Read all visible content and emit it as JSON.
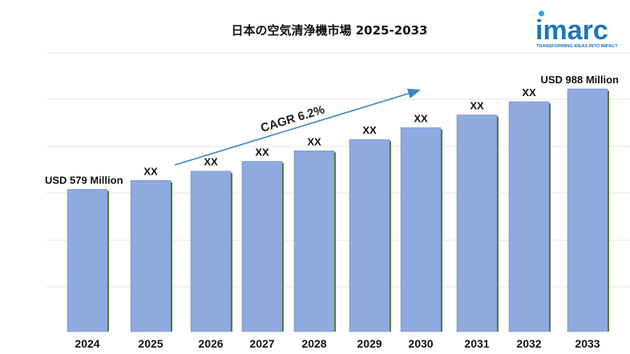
{
  "chart_data": {
    "type": "bar",
    "title": "日本の空気清浄機市場  2025-2033",
    "categories": [
      "2024",
      "2025",
      "2026",
      "2027",
      "2028",
      "2029",
      "2030",
      "2031",
      "2032",
      "2033"
    ],
    "values": [
      579,
      615,
      653,
      693,
      736,
      782,
      830,
      882,
      936,
      988
    ],
    "data_labels": [
      "USD 579 Million",
      "XX",
      "XX",
      "XX",
      "XX",
      "XX",
      "XX",
      "XX",
      "XX",
      "USD 988 Million"
    ],
    "ylim": [
      0,
      1030
    ],
    "grid": true,
    "annotation": "CAGR 6.2%",
    "bar_color": "#8eaadf",
    "grid_color": "#e6e6e6"
  },
  "brand": {
    "name": "imarc",
    "tagline": "TRANSFORMING IDEAS INTO IMPACT",
    "color": "#1d76b8",
    "dot_color": "#2aa8e0"
  }
}
